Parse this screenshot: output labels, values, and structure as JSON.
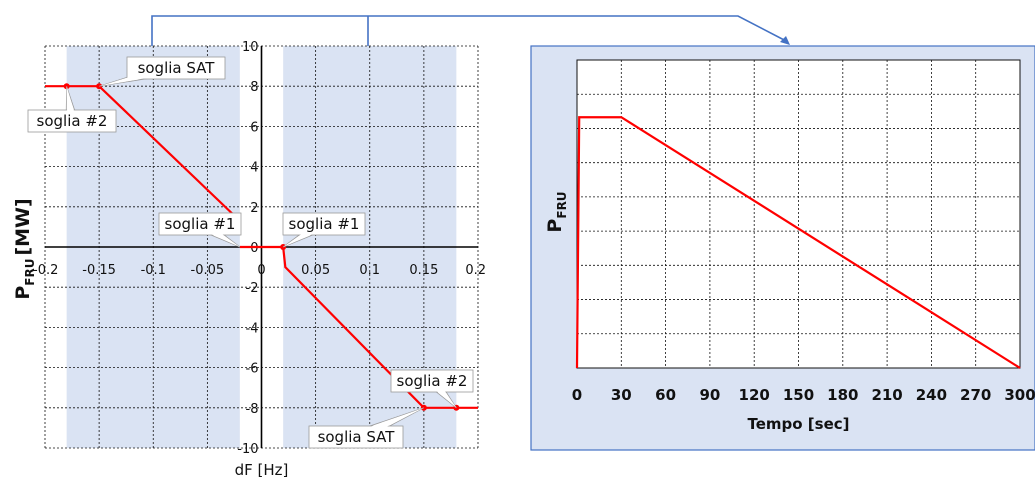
{
  "chart_data": [
    {
      "type": "line",
      "title": "",
      "xlabel": "dF [Hz]",
      "ylabel_main": "P",
      "ylabel_sub": "FRU",
      "ylabel_unit": "[MW]",
      "xlim": [
        -0.2,
        0.2
      ],
      "ylim": [
        -10,
        10
      ],
      "x_ticks": [
        "-0.2",
        "-0.15",
        "-0.1",
        "-0.05",
        "0",
        "0.05",
        "0.1",
        "0.15",
        "0.2"
      ],
      "x_tick_values": [
        -0.2,
        -0.15,
        -0.1,
        -0.05,
        0,
        0.05,
        0.1,
        0.15,
        0.2
      ],
      "y_ticks": [
        "10",
        "8",
        "6",
        "4",
        "2",
        "0",
        "-2",
        "-4",
        "-6",
        "-8",
        "-10"
      ],
      "y_tick_values": [
        10,
        8,
        6,
        4,
        2,
        0,
        -2,
        -4,
        -6,
        -8,
        -10
      ],
      "grid": true,
      "shaded_x_ranges": [
        [
          -0.18,
          -0.02
        ],
        [
          0.02,
          0.18
        ]
      ],
      "series": [
        {
          "segments": [
            [
              [
                -0.2,
                8
              ],
              [
                -0.15,
                8
              ],
              [
                -0.02,
                1.3
              ]
            ],
            [
              [
                -0.02,
                0
              ],
              [
                0.02,
                0
              ],
              [
                0.022,
                -1
              ],
              [
                0.15,
                -8
              ],
              [
                0.2,
                -8
              ]
            ]
          ],
          "markers": [
            [
              -0.18,
              8
            ],
            [
              -0.15,
              8
            ],
            [
              0.02,
              0
            ],
            [
              0.15,
              -8
            ],
            [
              0.18,
              -8
            ]
          ]
        }
      ],
      "annotations": [
        {
          "text": "soglia SAT",
          "x": -0.15,
          "y": 8
        },
        {
          "text": "soglia #2",
          "x": -0.18,
          "y": 8
        },
        {
          "text": "soglia #1",
          "x": -0.02,
          "y": 0
        },
        {
          "text": "soglia #1",
          "x": 0.02,
          "y": 0
        },
        {
          "text": "soglia #2",
          "x": 0.18,
          "y": -8
        },
        {
          "text": "soglia SAT",
          "x": 0.15,
          "y": -8
        }
      ]
    },
    {
      "type": "line",
      "title": "",
      "xlabel": "Tempo [sec]",
      "ylabel_main": "P",
      "ylabel_sub": "FRU",
      "xlim": [
        0,
        300
      ],
      "x_ticks": [
        "0",
        "30",
        "60",
        "90",
        "120",
        "150",
        "180",
        "210",
        "240",
        "270",
        "300"
      ],
      "x_tick_values": [
        0,
        30,
        60,
        90,
        120,
        150,
        180,
        210,
        240,
        270,
        300
      ],
      "ylim": [
        0,
        1
      ],
      "y_ticks": [],
      "grid": true,
      "series": [
        {
          "x": [
            0,
            1.5,
            30,
            300
          ],
          "y": [
            0,
            0.92,
            0.92,
            0
          ]
        }
      ]
    }
  ],
  "colors": {
    "line": "#ff0000",
    "shade": "#dae3f3",
    "connector": "#4472c4",
    "panel_bg": "#dae3f3",
    "panel_border": "#4472c4",
    "grid": "#111111"
  }
}
